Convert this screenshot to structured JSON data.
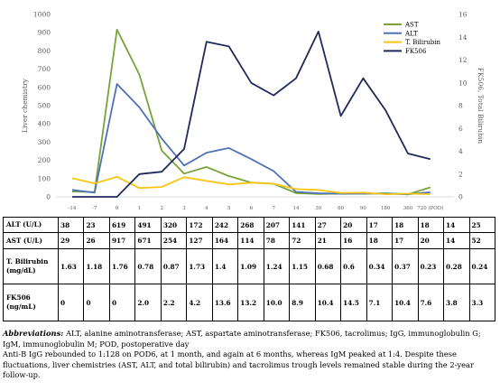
{
  "chart_data": {
    "type": "line",
    "x": [
      "-14",
      "-7",
      "0",
      "1",
      "2",
      "3",
      "4",
      "5",
      "6",
      "7",
      "14",
      "30",
      "60",
      "90",
      "180",
      "360",
      "720 (POD)"
    ],
    "left_axis": {
      "label": "Liver chemistry",
      "range": [
        0,
        1000
      ],
      "ticks": [
        "0",
        "100",
        "200",
        "300",
        "400",
        "500",
        "600",
        "700",
        "800",
        "900",
        "1000"
      ]
    },
    "right_axis": {
      "label": "FK506, Total Bilirubin",
      "range": [
        0,
        16
      ],
      "ticks": [
        "0",
        "2",
        "4",
        "6",
        "8",
        "10",
        "12",
        "14",
        "16"
      ]
    },
    "series": [
      {
        "name": "AST",
        "axis": "left",
        "color": "#77A43A",
        "values": [
          29,
          26,
          917,
          671,
          254,
          127,
          164,
          114,
          78,
          72,
          21,
          16,
          18,
          17,
          20,
          14,
          52
        ]
      },
      {
        "name": "ALT",
        "axis": "left",
        "color": "#4E72B6",
        "values": [
          38,
          23,
          619,
          491,
          320,
          172,
          242,
          268,
          207,
          141,
          27,
          20,
          17,
          18,
          18,
          14,
          25
        ]
      },
      {
        "name": "T. Bilirubin",
        "axis": "right",
        "color": "#F5C614",
        "values": [
          1.63,
          1.18,
          1.76,
          0.78,
          0.87,
          1.73,
          1.4,
          1.09,
          1.24,
          1.15,
          0.68,
          0.6,
          0.34,
          0.37,
          0.23,
          0.28,
          0.24
        ]
      },
      {
        "name": "FK506",
        "axis": "right",
        "color": "#1F2A5C",
        "values": [
          0,
          0,
          0,
          2.0,
          2.2,
          4.2,
          13.6,
          13.2,
          10.0,
          8.9,
          10.4,
          14.5,
          7.1,
          10.4,
          7.6,
          3.8,
          3.3
        ]
      }
    ],
    "legend": "top-right",
    "grid": false
  },
  "table": {
    "rows": [
      {
        "label": "ALT (U/L)",
        "values": [
          "38",
          "23",
          "619",
          "491",
          "320",
          "172",
          "242",
          "268",
          "207",
          "141",
          "27",
          "20",
          "17",
          "18",
          "18",
          "14",
          "25"
        ]
      },
      {
        "label": "AST (U/L)",
        "values": [
          "29",
          "26",
          "917",
          "671",
          "254",
          "127",
          "164",
          "114",
          "78",
          "72",
          "21",
          "16",
          "18",
          "17",
          "20",
          "14",
          "52"
        ]
      },
      {
        "label": "T. Bilirubin (mg/dL)",
        "values": [
          "1.63",
          "1.18",
          "1.76",
          "0.78",
          "0.87",
          "1.73",
          "1.4",
          "1.09",
          "1.24",
          "1.15",
          "0.68",
          "0.6",
          "0.34",
          "0.37",
          "0.23",
          "0.28",
          "0.24"
        ]
      },
      {
        "label": "FK506 (ng/mL)",
        "values": [
          "0",
          "0",
          "0",
          "2.0",
          "2.2",
          "4.2",
          "13.6",
          "13.2",
          "10.0",
          "8.9",
          "10.4",
          "14.5",
          "7.1",
          "10.4",
          "7.6",
          "3.8",
          "3.3"
        ]
      }
    ]
  },
  "caption": {
    "abbr_head": "Abbreviations:",
    "abbr_text": " ALT, alanine aminotransferase; AST, aspartate aminotransferase; FK506, tacrolimus; IgG, immunoglobulin G; IgM, immunoglobulin M; POD, postoperative day",
    "note": "Anti-B IgG rebounded to 1:128 on POD6, at 1 month, and again at 6 months, whereas IgM peaked at 1:4. Despite these fluctuations, liver chemistries (AST, ALT, and total bilirubin) and tacrolimus trough levels remained stable during the 2-year follow-up."
  }
}
